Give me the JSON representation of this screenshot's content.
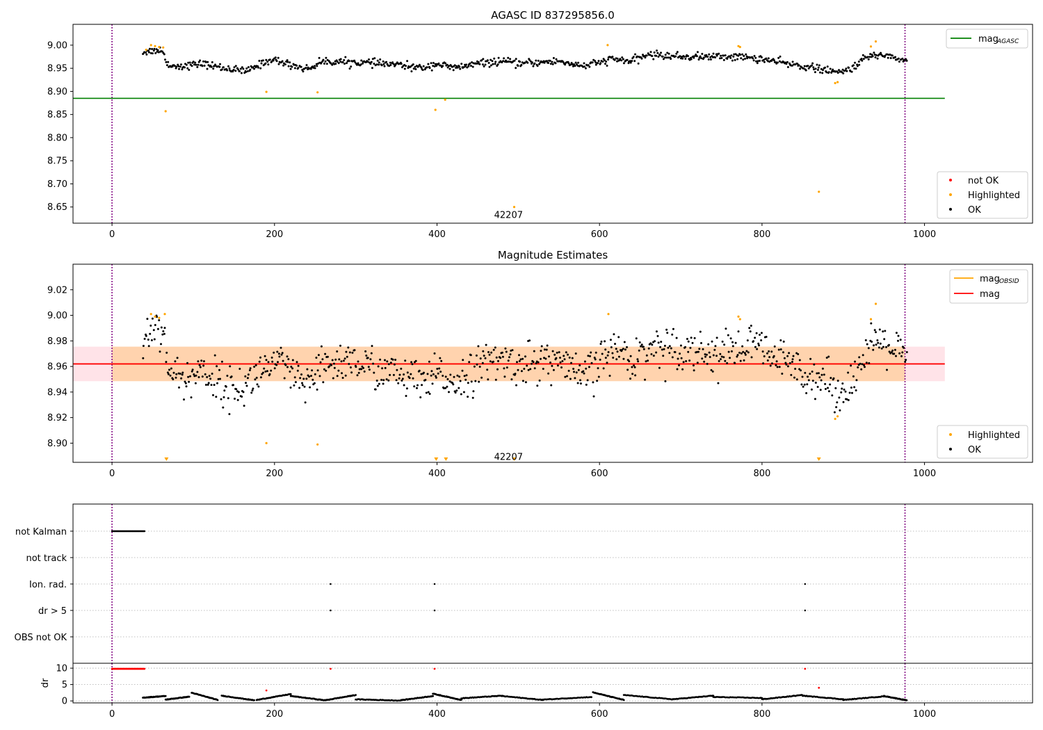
{
  "figure": {
    "title": "AGASC ID 837295856.0"
  },
  "chart_data": [
    {
      "id": "top",
      "type": "scatter",
      "title": "AGASC ID 837295856.0",
      "xlim": [
        -48,
        1133
      ],
      "ylim": [
        8.615,
        9.045
      ],
      "xticks": [
        0,
        200,
        400,
        600,
        800,
        1000
      ],
      "yticks": [
        8.65,
        8.7,
        8.75,
        8.8,
        8.85,
        8.9,
        8.95,
        9.0
      ],
      "ytick_labels": [
        "8.65",
        "8.70",
        "8.75",
        "8.80",
        "8.85",
        "8.90",
        "8.95",
        "9.00"
      ],
      "vlines": [
        0,
        976
      ],
      "hline": {
        "y": 8.885,
        "xmin": -48,
        "xmax": 1025,
        "color": "#008000"
      },
      "annotation": {
        "text": "42207",
        "x": 488,
        "y": 8.634
      },
      "line_legend": [
        {
          "name": "mag",
          "subscript": "AGASC",
          "color": "#008000"
        }
      ],
      "marker_legend": [
        {
          "label": "not OK",
          "color": "#ff0000"
        },
        {
          "label": "Highlighted",
          "color": "#ffa500"
        },
        {
          "label": "OK",
          "color": "#000000"
        }
      ],
      "highlighted_points": [
        [
          42,
          8.99
        ],
        [
          48,
          9.0
        ],
        [
          53,
          8.998
        ],
        [
          58,
          8.996
        ],
        [
          63,
          8.995
        ],
        [
          66,
          8.857
        ],
        [
          190,
          8.899
        ],
        [
          253,
          8.898
        ],
        [
          398,
          8.86
        ],
        [
          410,
          8.882
        ],
        [
          495,
          8.65
        ],
        [
          610,
          9.0
        ],
        [
          771,
          8.998
        ],
        [
          773,
          8.996
        ],
        [
          870,
          8.683
        ],
        [
          890,
          8.918
        ],
        [
          893,
          8.92
        ],
        [
          934,
          8.997
        ],
        [
          940,
          9.008
        ]
      ],
      "ok_series": {
        "x_range": [
          38,
          978
        ],
        "count": 860,
        "anchors": [
          [
            38,
            8.985
          ],
          [
            60,
            8.99
          ],
          [
            66,
            8.972
          ],
          [
            70,
            8.955
          ],
          [
            90,
            8.955
          ],
          [
            110,
            8.96
          ],
          [
            140,
            8.95
          ],
          [
            165,
            8.943
          ],
          [
            190,
            8.965
          ],
          [
            200,
            8.968
          ],
          [
            215,
            8.96
          ],
          [
            240,
            8.948
          ],
          [
            260,
            8.965
          ],
          [
            300,
            8.963
          ],
          [
            350,
            8.958
          ],
          [
            380,
            8.95
          ],
          [
            400,
            8.96
          ],
          [
            420,
            8.95
          ],
          [
            450,
            8.96
          ],
          [
            480,
            8.965
          ],
          [
            500,
            8.96
          ],
          [
            550,
            8.965
          ],
          [
            580,
            8.955
          ],
          [
            600,
            8.962
          ],
          [
            615,
            8.97
          ],
          [
            640,
            8.965
          ],
          [
            660,
            8.98
          ],
          [
            700,
            8.975
          ],
          [
            740,
            8.975
          ],
          [
            770,
            8.975
          ],
          [
            800,
            8.97
          ],
          [
            830,
            8.96
          ],
          [
            860,
            8.952
          ],
          [
            880,
            8.945
          ],
          [
            895,
            8.94
          ],
          [
            910,
            8.95
          ],
          [
            930,
            8.975
          ],
          [
            950,
            8.98
          ],
          [
            978,
            8.965
          ]
        ],
        "noise": 0.004
      }
    },
    {
      "id": "mid",
      "type": "scatter",
      "title": "Magnitude Estimates",
      "xlim": [
        -48,
        1133
      ],
      "ylim": [
        8.885,
        9.04
      ],
      "xticks": [
        0,
        200,
        400,
        600,
        800,
        1000
      ],
      "yticks": [
        8.9,
        8.92,
        8.94,
        8.96,
        8.98,
        9.0,
        9.02
      ],
      "ytick_labels": [
        "8.90",
        "8.92",
        "8.94",
        "8.96",
        "8.98",
        "9.00",
        "9.02"
      ],
      "vlines": [
        0,
        976
      ],
      "mag_line": {
        "y": 8.962,
        "xmin": -48,
        "xmax": 1025,
        "color": "#ff0000"
      },
      "mag_band": {
        "y0": 8.9485,
        "y1": 8.9755,
        "xmin": -48,
        "xmax": 1025,
        "color": "#ffc0cb"
      },
      "obsid_band": {
        "y0": 8.9485,
        "y1": 8.9755,
        "xmin": 0,
        "xmax": 976,
        "color": "#ffa500"
      },
      "obsid_line": {
        "y": 8.962,
        "xmin": 0,
        "xmax": 976,
        "color": "#ffa500"
      },
      "annotation": {
        "text": "42207",
        "x": 488,
        "y": 8.8895
      },
      "line_legend": [
        {
          "name": "mag",
          "subscript": "OBSID",
          "color": "#ffa500"
        },
        {
          "name": "mag",
          "subscript": "",
          "color": "#ff0000"
        }
      ],
      "marker_legend": [
        {
          "label": "Highlighted",
          "color": "#ffa500"
        },
        {
          "label": "OK",
          "color": "#000000"
        }
      ],
      "highlighted_points": [
        [
          48,
          9.001
        ],
        [
          53,
          8.999
        ],
        [
          58,
          8.998
        ],
        [
          65,
          9.001
        ],
        [
          190,
          8.9
        ],
        [
          253,
          8.899
        ],
        [
          611,
          9.001
        ],
        [
          771,
          8.999
        ],
        [
          773,
          8.997
        ],
        [
          890,
          8.919
        ],
        [
          893,
          8.921
        ],
        [
          934,
          8.997
        ],
        [
          940,
          9.009
        ]
      ],
      "offscale_markers_x": [
        67,
        399,
        411,
        495,
        870
      ],
      "ok_series": {
        "x_range": [
          38,
          978
        ],
        "count": 860,
        "anchors": [
          [
            38,
            8.98
          ],
          [
            50,
            8.99
          ],
          [
            60,
            8.995
          ],
          [
            66,
            8.975
          ],
          [
            72,
            8.955
          ],
          [
            90,
            8.948
          ],
          [
            110,
            8.958
          ],
          [
            130,
            8.948
          ],
          [
            150,
            8.942
          ],
          [
            165,
            8.945
          ],
          [
            180,
            8.955
          ],
          [
            195,
            8.962
          ],
          [
            210,
            8.96
          ],
          [
            230,
            8.948
          ],
          [
            245,
            8.945
          ],
          [
            260,
            8.96
          ],
          [
            290,
            8.965
          ],
          [
            330,
            8.957
          ],
          [
            370,
            8.95
          ],
          [
            390,
            8.945
          ],
          [
            400,
            8.955
          ],
          [
            420,
            8.948
          ],
          [
            440,
            8.955
          ],
          [
            470,
            8.965
          ],
          [
            500,
            8.962
          ],
          [
            550,
            8.965
          ],
          [
            570,
            8.952
          ],
          [
            590,
            8.955
          ],
          [
            605,
            8.968
          ],
          [
            620,
            8.973
          ],
          [
            645,
            8.965
          ],
          [
            660,
            8.975
          ],
          [
            700,
            8.975
          ],
          [
            740,
            8.97
          ],
          [
            770,
            8.972
          ],
          [
            790,
            8.978
          ],
          [
            810,
            8.968
          ],
          [
            840,
            8.96
          ],
          [
            870,
            8.952
          ],
          [
            880,
            8.948
          ],
          [
            895,
            8.94
          ],
          [
            910,
            8.948
          ],
          [
            925,
            8.965
          ],
          [
            945,
            8.98
          ],
          [
            960,
            8.975
          ],
          [
            978,
            8.965
          ]
        ],
        "noise": 0.008
      }
    },
    {
      "id": "flags",
      "type": "scatter",
      "xlim": [
        -48,
        1133
      ],
      "vlines": [
        0,
        976
      ],
      "categories": [
        "OBS not OK",
        "dr > 5",
        "Ion. rad.",
        "not track",
        "not Kalman"
      ],
      "category_points": [
        {
          "category": "not Kalman",
          "x_range": [
            0,
            40
          ],
          "count": 45
        },
        {
          "category": "Ion. rad.",
          "x": [
            269,
            397,
            853
          ]
        },
        {
          "category": "dr > 5",
          "x": [
            269,
            397,
            853
          ]
        }
      ]
    },
    {
      "id": "dr",
      "type": "scatter",
      "ylabel": "dr",
      "xlim": [
        -48,
        1133
      ],
      "ylim": [
        -0.6,
        11.5
      ],
      "xticks": [
        0,
        200,
        400,
        600,
        800,
        1000
      ],
      "yticks": [
        0,
        5,
        10
      ],
      "ytick_labels": [
        "0",
        "5",
        "10"
      ],
      "vlines": [
        0,
        976
      ],
      "not_ok_points": [
        [
          269,
          9.8
        ],
        [
          397,
          9.8
        ],
        [
          853,
          9.8
        ],
        [
          190,
          3.2
        ],
        [
          870,
          4.0
        ]
      ],
      "not_ok_clusters": [
        {
          "x_range": [
            0,
            40
          ],
          "y": 9.8,
          "count": 45
        }
      ],
      "ok_series": {
        "x_range": [
          38,
          978
        ],
        "count": 860,
        "segments": [
          [
            38,
            66,
            1.0,
            1.5
          ],
          [
            66,
            95,
            0.4,
            1.3
          ],
          [
            98,
            130,
            2.5,
            0.3
          ],
          [
            135,
            175,
            1.6,
            0.2
          ],
          [
            178,
            220,
            0.3,
            2.1
          ],
          [
            220,
            262,
            1.5,
            0.2
          ],
          [
            262,
            300,
            0.2,
            1.8
          ],
          [
            300,
            355,
            0.5,
            0.1
          ],
          [
            355,
            395,
            0.2,
            1.5
          ],
          [
            395,
            430,
            2.2,
            0.3
          ],
          [
            430,
            480,
            0.8,
            1.6
          ],
          [
            480,
            530,
            1.5,
            0.3
          ],
          [
            530,
            590,
            0.4,
            1.2
          ],
          [
            592,
            630,
            2.6,
            0.3
          ],
          [
            630,
            690,
            1.8,
            0.5
          ],
          [
            690,
            740,
            0.5,
            1.6
          ],
          [
            740,
            800,
            1.2,
            0.9
          ],
          [
            800,
            850,
            0.5,
            1.8
          ],
          [
            850,
            900,
            1.6,
            0.5
          ],
          [
            900,
            950,
            0.3,
            1.4
          ],
          [
            950,
            978,
            1.5,
            0.2
          ]
        ]
      }
    }
  ]
}
